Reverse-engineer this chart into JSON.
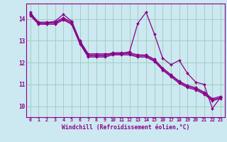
{
  "xlabel": "Windchill (Refroidissement éolien,°C)",
  "bg_color": "#cce8f0",
  "line_color": "#880088",
  "grid_color": "#99ccbb",
  "xlim": [
    -0.5,
    23.5
  ],
  "ylim": [
    9.5,
    14.7
  ],
  "yticks": [
    10,
    11,
    12,
    13,
    14
  ],
  "xticks": [
    0,
    1,
    2,
    3,
    4,
    5,
    6,
    7,
    8,
    9,
    10,
    11,
    12,
    13,
    14,
    15,
    16,
    17,
    18,
    19,
    20,
    21,
    22,
    23
  ],
  "series": [
    [
      14.3,
      13.8,
      13.8,
      13.9,
      14.2,
      13.9,
      13.0,
      12.4,
      12.4,
      12.4,
      12.4,
      12.4,
      12.5,
      13.8,
      14.3,
      13.3,
      12.2,
      11.9,
      12.1,
      11.5,
      11.1,
      11.0,
      9.9,
      10.4
    ],
    [
      14.25,
      13.85,
      13.85,
      13.85,
      14.05,
      13.85,
      12.95,
      12.35,
      12.35,
      12.35,
      12.45,
      12.45,
      12.45,
      12.35,
      12.35,
      12.15,
      11.75,
      11.45,
      11.15,
      10.95,
      10.85,
      10.65,
      10.35,
      10.45
    ],
    [
      14.2,
      13.8,
      13.8,
      13.8,
      14.0,
      13.8,
      12.9,
      12.3,
      12.3,
      12.3,
      12.4,
      12.4,
      12.4,
      12.3,
      12.3,
      12.1,
      11.7,
      11.4,
      11.1,
      10.9,
      10.8,
      10.6,
      10.3,
      10.4
    ],
    [
      14.15,
      13.75,
      13.75,
      13.75,
      13.95,
      13.75,
      12.85,
      12.25,
      12.25,
      12.25,
      12.35,
      12.35,
      12.35,
      12.25,
      12.25,
      12.05,
      11.65,
      11.35,
      11.05,
      10.85,
      10.75,
      10.55,
      10.25,
      10.35
    ]
  ]
}
